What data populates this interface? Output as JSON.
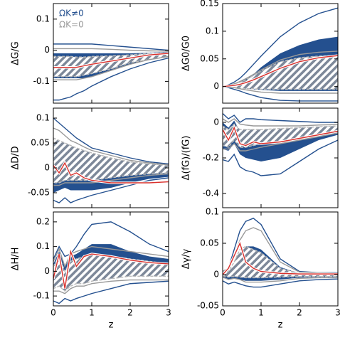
{
  "chart_data": [
    {
      "type": "line",
      "ylabel": "ΔG/G",
      "x": [
        0,
        0.15,
        0.3,
        0.45,
        0.6,
        0.8,
        1,
        1.5,
        2,
        2.5,
        3
      ],
      "xlim": [
        0,
        3
      ],
      "xticks": [
        0,
        1,
        2,
        3
      ],
      "xticklabels": false,
      "ylim": [
        -0.17,
        0.15
      ],
      "yticks": [
        -0.1,
        0,
        0.1
      ],
      "legend": [
        {
          "label": "ΩK≠0",
          "color": "#24508f"
        },
        {
          "label": "ΩK=0",
          "color": "#999999"
        }
      ],
      "series": [
        {
          "style": "band",
          "color": "#24508f",
          "upper": [
            -0.01,
            -0.01,
            -0.01,
            -0.01,
            -0.01,
            -0.01,
            -0.01,
            -0.01,
            -0.01,
            -0.008,
            -0.005
          ],
          "lower": [
            -0.09,
            -0.09,
            -0.09,
            -0.09,
            -0.09,
            -0.09,
            -0.085,
            -0.065,
            -0.045,
            -0.03,
            -0.02
          ]
        },
        {
          "style": "hatch",
          "color": "#7d8899",
          "upper": [
            -0.02,
            -0.02,
            -0.02,
            -0.02,
            -0.022,
            -0.022,
            -0.02,
            -0.018,
            -0.015,
            -0.01,
            -0.008
          ],
          "lower": [
            -0.085,
            -0.085,
            -0.085,
            -0.085,
            -0.085,
            -0.08,
            -0.075,
            -0.06,
            -0.04,
            -0.03,
            -0.02
          ]
        },
        {
          "style": "line",
          "color": "#24508f",
          "values": [
            0.02,
            0.02,
            0.02,
            0.02,
            0.02,
            0.02,
            0.02,
            0.015,
            0.01,
            0.005,
            0
          ]
        },
        {
          "style": "line",
          "color": "#24508f",
          "values": [
            -0.16,
            -0.16,
            -0.155,
            -0.15,
            -0.14,
            -0.13,
            -0.115,
            -0.085,
            -0.06,
            -0.04,
            -0.025
          ]
        },
        {
          "style": "line",
          "color": "#999999",
          "values": [
            0.005,
            0.005,
            0.005,
            0.005,
            0.005,
            0.005,
            0.005,
            0.003,
            0,
            -0.002,
            -0.003
          ]
        },
        {
          "style": "line",
          "color": "#999999",
          "values": [
            -0.095,
            -0.095,
            -0.095,
            -0.095,
            -0.095,
            -0.09,
            -0.085,
            -0.065,
            -0.045,
            -0.03,
            -0.02
          ]
        },
        {
          "style": "line",
          "color": "#d9302c",
          "values": [
            -0.055,
            -0.055,
            -0.055,
            -0.055,
            -0.055,
            -0.05,
            -0.045,
            -0.035,
            -0.025,
            -0.015,
            -0.01
          ]
        }
      ]
    },
    {
      "type": "line",
      "ylabel": "ΔG0/G0",
      "x": [
        0,
        0.15,
        0.3,
        0.45,
        0.6,
        0.8,
        1,
        1.5,
        2,
        2.5,
        3
      ],
      "xlim": [
        0,
        3
      ],
      "xticks": [
        0,
        1,
        2,
        3
      ],
      "xticklabels": false,
      "ylim": [
        -0.03,
        0.15
      ],
      "yticks": [
        0,
        0.05,
        0.1,
        0.15
      ],
      "series": [
        {
          "style": "band",
          "color": "#24508f",
          "upper": [
            0,
            0.002,
            0.005,
            0.01,
            0.015,
            0.022,
            0.035,
            0.06,
            0.075,
            0.085,
            0.09
          ],
          "lower": [
            0,
            0,
            0,
            -0.002,
            -0.004,
            -0.005,
            -0.006,
            -0.008,
            -0.008,
            -0.008,
            -0.008
          ]
        },
        {
          "style": "hatch",
          "color": "#7d8899",
          "upper": [
            0,
            0.002,
            0.005,
            0.008,
            0.012,
            0.02,
            0.028,
            0.045,
            0.052,
            0.055,
            0.056
          ],
          "lower": [
            0,
            0,
            -0.002,
            -0.003,
            -0.004,
            -0.004,
            -0.005,
            -0.005,
            -0.005,
            -0.005,
            -0.005
          ]
        },
        {
          "style": "line",
          "color": "#24508f",
          "values": [
            0,
            0.003,
            0.008,
            0.015,
            0.025,
            0.04,
            0.055,
            0.09,
            0.115,
            0.132,
            0.142
          ]
        },
        {
          "style": "line",
          "color": "#24508f",
          "values": [
            0,
            -0.002,
            -0.005,
            -0.008,
            -0.012,
            -0.016,
            -0.02,
            -0.025,
            -0.026,
            -0.026,
            -0.026
          ]
        },
        {
          "style": "line",
          "color": "#999999",
          "values": [
            0,
            0.002,
            0.005,
            0.009,
            0.014,
            0.022,
            0.03,
            0.048,
            0.058,
            0.062,
            0.064
          ]
        },
        {
          "style": "line",
          "color": "#999999",
          "values": [
            0,
            -0.001,
            -0.002,
            -0.004,
            -0.006,
            -0.008,
            -0.01,
            -0.012,
            -0.012,
            -0.012,
            -0.012
          ]
        },
        {
          "style": "line",
          "color": "#d9302c",
          "values": [
            0,
            0.001,
            0.002,
            0.004,
            0.007,
            0.012,
            0.018,
            0.033,
            0.045,
            0.052,
            0.056
          ]
        }
      ]
    },
    {
      "type": "line",
      "ylabel": "ΔD/D",
      "x": [
        0,
        0.15,
        0.3,
        0.45,
        0.6,
        0.8,
        1,
        1.5,
        2,
        2.5,
        3
      ],
      "xlim": [
        0,
        3
      ],
      "xticks": [
        0,
        1,
        2,
        3
      ],
      "xticklabels": false,
      "ylim": [
        -0.08,
        0.12
      ],
      "yticks": [
        -0.05,
        0,
        0.05,
        0.1
      ],
      "series": [
        {
          "style": "band",
          "color": "#24508f",
          "upper": [
            0.06,
            0.05,
            0.045,
            0.04,
            0.035,
            0.03,
            0.025,
            0.015,
            0.01,
            0.006,
            0.004
          ],
          "lower": [
            -0.05,
            -0.045,
            -0.04,
            -0.045,
            -0.045,
            -0.045,
            -0.045,
            -0.04,
            -0.03,
            -0.022,
            -0.018
          ]
        },
        {
          "style": "hatch",
          "color": "#7d8899",
          "upper": [
            0.06,
            0.055,
            0.05,
            0.045,
            0.04,
            0.035,
            0.03,
            0.02,
            0.012,
            0.008,
            0.005
          ],
          "lower": [
            -0.03,
            -0.03,
            -0.025,
            -0.025,
            -0.025,
            -0.025,
            -0.025,
            -0.02,
            -0.015,
            -0.012,
            -0.01
          ]
        },
        {
          "style": "line",
          "color": "#24508f",
          "values": [
            0.1,
            0.09,
            0.08,
            0.07,
            0.06,
            0.05,
            0.04,
            0.03,
            0.02,
            0.012,
            0.008
          ]
        },
        {
          "style": "line",
          "color": "#24508f",
          "values": [
            -0.065,
            -0.07,
            -0.06,
            -0.07,
            -0.065,
            -0.06,
            -0.055,
            -0.045,
            -0.035,
            -0.025,
            -0.02
          ]
        },
        {
          "style": "line",
          "color": "#999999",
          "values": [
            0.08,
            0.075,
            0.065,
            0.055,
            0.05,
            0.042,
            0.035,
            0.025,
            0.015,
            0.01,
            0.006
          ]
        },
        {
          "style": "line",
          "color": "#999999",
          "values": [
            -0.035,
            -0.035,
            -0.03,
            -0.03,
            -0.03,
            -0.03,
            -0.03,
            -0.025,
            -0.02,
            -0.015,
            -0.012
          ]
        },
        {
          "style": "line",
          "color": "#d9302c",
          "values": [
            0.005,
            -0.01,
            0.01,
            -0.015,
            -0.01,
            -0.02,
            -0.025,
            -0.03,
            -0.03,
            -0.03,
            -0.028
          ]
        }
      ]
    },
    {
      "type": "line",
      "ylabel": "Δ(fG)/(fG)",
      "x": [
        0,
        0.15,
        0.3,
        0.45,
        0.6,
        0.8,
        1,
        1.5,
        2,
        2.5,
        3
      ],
      "xlim": [
        0,
        3
      ],
      "xticks": [
        0,
        1,
        2,
        3
      ],
      "xticklabels": false,
      "ylim": [
        -0.48,
        0.08
      ],
      "yticks": [
        -0.4,
        -0.2,
        0
      ],
      "series": [
        {
          "style": "band",
          "color": "#24508f",
          "upper": [
            0,
            -0.03,
            0.01,
            -0.05,
            -0.04,
            -0.04,
            -0.04,
            -0.04,
            -0.03,
            -0.025,
            -0.02
          ],
          "lower": [
            -0.15,
            -0.16,
            -0.12,
            -0.18,
            -0.2,
            -0.21,
            -0.22,
            -0.2,
            -0.15,
            -0.1,
            -0.07
          ]
        },
        {
          "style": "hatch",
          "color": "#7d8899",
          "upper": [
            -0.02,
            -0.04,
            -0.01,
            -0.04,
            -0.04,
            -0.04,
            -0.04,
            -0.035,
            -0.03,
            -0.025,
            -0.02
          ],
          "lower": [
            -0.13,
            -0.14,
            -0.1,
            -0.14,
            -0.14,
            -0.13,
            -0.12,
            -0.11,
            -0.09,
            -0.07,
            -0.05
          ]
        },
        {
          "style": "line",
          "color": "#24508f",
          "values": [
            0.05,
            0.02,
            0.04,
            0,
            0.02,
            0.02,
            0.015,
            0.01,
            0.005,
            0,
            0
          ]
        },
        {
          "style": "line",
          "color": "#24508f",
          "values": [
            -0.21,
            -0.22,
            -0.18,
            -0.25,
            -0.27,
            -0.28,
            -0.3,
            -0.29,
            -0.22,
            -0.15,
            -0.1
          ]
        },
        {
          "style": "line",
          "color": "#999999",
          "values": [
            0.02,
            0,
            0.02,
            -0.01,
            -0.015,
            -0.02,
            -0.02,
            -0.02,
            -0.02,
            -0.015,
            -0.012
          ]
        },
        {
          "style": "line",
          "color": "#999999",
          "values": [
            -0.15,
            -0.15,
            -0.12,
            -0.16,
            -0.16,
            -0.15,
            -0.14,
            -0.12,
            -0.1,
            -0.08,
            -0.06
          ]
        },
        {
          "style": "line",
          "color": "#d9302c",
          "values": [
            -0.04,
            -0.1,
            -0.03,
            -0.12,
            -0.13,
            -0.11,
            -0.12,
            -0.11,
            -0.09,
            -0.07,
            -0.05
          ]
        }
      ]
    },
    {
      "type": "line",
      "ylabel": "ΔH/H",
      "xlabel": "z",
      "x": [
        0,
        0.15,
        0.3,
        0.45,
        0.6,
        0.8,
        1,
        1.5,
        2,
        2.5,
        3
      ],
      "xlim": [
        0,
        3
      ],
      "xticks": [
        0,
        1,
        2,
        3
      ],
      "xticklabels": true,
      "ylim": [
        -0.14,
        0.24
      ],
      "yticks": [
        -0.1,
        0,
        0.1,
        0.2
      ],
      "series": [
        {
          "style": "band",
          "color": "#24508f",
          "upper": [
            0.03,
            0.08,
            0.02,
            0.06,
            0.07,
            0.09,
            0.11,
            0.11,
            0.08,
            0.06,
            0.05
          ],
          "lower": [
            -0.07,
            -0.06,
            -0.08,
            -0.06,
            -0.05,
            -0.04,
            -0.02,
            0,
            0.005,
            0.01,
            0.01
          ]
        },
        {
          "style": "hatch",
          "color": "#7d8899",
          "upper": [
            0.02,
            0.06,
            0,
            0.04,
            0.05,
            0.06,
            0.07,
            0.06,
            0.05,
            0.04,
            0.03
          ],
          "lower": [
            -0.07,
            -0.06,
            -0.08,
            -0.06,
            -0.05,
            -0.05,
            -0.04,
            -0.03,
            -0.02,
            -0.02,
            -0.02
          ]
        },
        {
          "style": "line",
          "color": "#24508f",
          "values": [
            0.05,
            0.1,
            0.06,
            0.07,
            0.1,
            0.15,
            0.19,
            0.2,
            0.16,
            0.11,
            0.08
          ]
        },
        {
          "style": "line",
          "color": "#24508f",
          "values": [
            -0.12,
            -0.13,
            -0.11,
            -0.12,
            -0.11,
            -0.1,
            -0.09,
            -0.07,
            -0.05,
            -0.045,
            -0.04
          ]
        },
        {
          "style": "line",
          "color": "#999999",
          "values": [
            0.04,
            0.09,
            0.02,
            0.07,
            0.08,
            0.09,
            0.1,
            0.09,
            0.08,
            0.07,
            0.06
          ]
        },
        {
          "style": "line",
          "color": "#999999",
          "values": [
            -0.08,
            -0.08,
            -0.09,
            -0.07,
            -0.06,
            -0.06,
            -0.05,
            -0.04,
            -0.035,
            -0.035,
            -0.035
          ]
        },
        {
          "style": "line",
          "color": "#d9302c",
          "values": [
            -0.03,
            0.07,
            -0.07,
            0.08,
            0.02,
            0.06,
            0.07,
            0.06,
            0.045,
            0.035,
            0.03
          ]
        }
      ]
    },
    {
      "type": "line",
      "ylabel": "Δγ/γ",
      "xlabel": "z",
      "x": [
        0,
        0.15,
        0.3,
        0.45,
        0.6,
        0.8,
        1,
        1.5,
        2,
        2.5,
        3
      ],
      "xlim": [
        0,
        3
      ],
      "xticks": [
        0,
        1,
        2,
        3
      ],
      "xticklabels": true,
      "ylim": [
        -0.05,
        0.1
      ],
      "yticks": [
        -0.05,
        0,
        0.05,
        0.1
      ],
      "series": [
        {
          "style": "band",
          "color": "#24508f",
          "upper": [
            0.003,
            0.005,
            0.015,
            0.035,
            0.045,
            0.045,
            0.04,
            0.012,
            0.002,
            0.001,
            0.001
          ],
          "lower": [
            -0.005,
            -0.008,
            -0.006,
            -0.008,
            -0.01,
            -0.01,
            -0.01,
            -0.008,
            -0.005,
            -0.004,
            -0.004
          ]
        },
        {
          "style": "hatch",
          "color": "#7d8899",
          "upper": [
            0.003,
            0.005,
            0.02,
            0.04,
            0.045,
            0.04,
            0.035,
            0.01,
            0.002,
            0.001,
            0.001
          ],
          "lower": [
            -0.002,
            -0.004,
            -0.003,
            -0.004,
            -0.005,
            -0.005,
            -0.005,
            -0.004,
            -0.003,
            -0.003,
            -0.003
          ]
        },
        {
          "style": "line",
          "color": "#24508f",
          "values": [
            0.005,
            0.01,
            0.04,
            0.07,
            0.085,
            0.09,
            0.08,
            0.025,
            0.005,
            0.003,
            0.003
          ]
        },
        {
          "style": "line",
          "color": "#24508f",
          "values": [
            -0.01,
            -0.015,
            -0.012,
            -0.015,
            -0.018,
            -0.02,
            -0.02,
            -0.015,
            -0.01,
            -0.008,
            -0.007
          ]
        },
        {
          "style": "line",
          "color": "#999999",
          "values": [
            0.005,
            0.01,
            0.03,
            0.055,
            0.07,
            0.075,
            0.07,
            0.02,
            0.004,
            0.003,
            0.002
          ]
        },
        {
          "style": "line",
          "color": "#999999",
          "values": [
            -0.004,
            -0.008,
            -0.006,
            -0.008,
            -0.012,
            -0.012,
            -0.012,
            -0.01,
            -0.006,
            -0.005,
            -0.005
          ]
        },
        {
          "style": "line",
          "color": "#d9302c",
          "values": [
            0,
            0.01,
            0.03,
            0.05,
            0.02,
            0.01,
            0.005,
            0.002,
            0.001,
            0.001,
            0.001
          ]
        }
      ]
    }
  ]
}
